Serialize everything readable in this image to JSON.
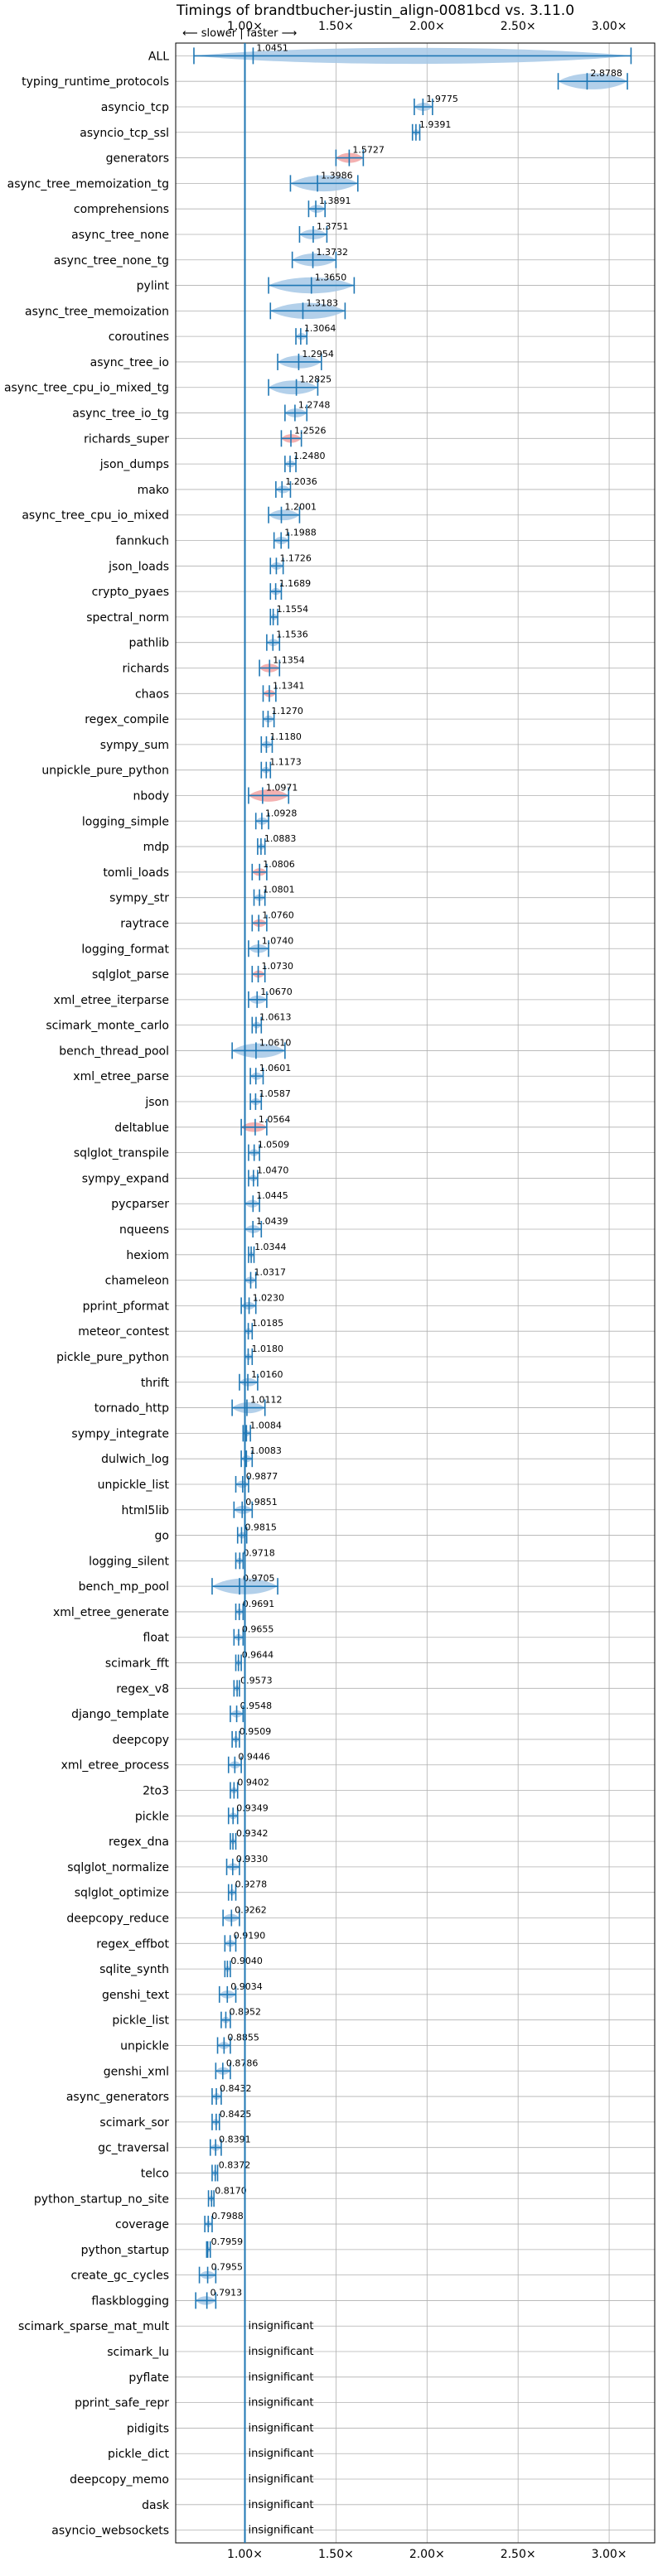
{
  "chart_data": {
    "type": "violin",
    "title": "Timings of brandtbucher-justin_align-0081bcd vs. 3.11.0",
    "x_tick_labels": [
      "1.00×",
      "1.50×",
      "2.00×",
      "2.50×",
      "3.00×"
    ],
    "x_ticks": [
      1.0,
      1.5,
      2.0,
      2.5,
      3.0
    ],
    "xlim": [
      0.62,
      3.25
    ],
    "reference_line": 1.0,
    "direction_note": "⟵ slower | faster ⟶",
    "grid": true,
    "colors": {
      "faster": "#1f77b4",
      "slower": "#d62728",
      "violin_faster": "#a6c8e6",
      "violin_slower": "#f2a3a3"
    },
    "insignificant_label": "insignificant",
    "benchmarks": [
      {
        "name": "ALL",
        "value": 1.0451,
        "min": 0.72,
        "max": 3.12
      },
      {
        "name": "typing_runtime_protocols",
        "value": 2.8788,
        "min": 2.72,
        "max": 3.1
      },
      {
        "name": "asyncio_tcp",
        "value": 1.9775,
        "min": 1.93,
        "max": 2.03
      },
      {
        "name": "asyncio_tcp_ssl",
        "value": 1.9391,
        "min": 1.92,
        "max": 1.96
      },
      {
        "name": "generators",
        "value": 1.5727,
        "min": 1.5,
        "max": 1.65
      },
      {
        "name": "async_tree_memoization_tg",
        "value": 1.3986,
        "min": 1.25,
        "max": 1.62
      },
      {
        "name": "comprehensions",
        "value": 1.3891,
        "min": 1.35,
        "max": 1.44
      },
      {
        "name": "async_tree_none",
        "value": 1.3751,
        "min": 1.3,
        "max": 1.45
      },
      {
        "name": "async_tree_none_tg",
        "value": 1.3732,
        "min": 1.26,
        "max": 1.5
      },
      {
        "name": "pylint",
        "value": 1.365,
        "min": 1.13,
        "max": 1.6
      },
      {
        "name": "async_tree_memoization",
        "value": 1.3183,
        "min": 1.14,
        "max": 1.55
      },
      {
        "name": "coroutines",
        "value": 1.3064,
        "min": 1.28,
        "max": 1.34
      },
      {
        "name": "async_tree_io",
        "value": 1.2954,
        "min": 1.18,
        "max": 1.42
      },
      {
        "name": "async_tree_cpu_io_mixed_tg",
        "value": 1.2825,
        "min": 1.13,
        "max": 1.4
      },
      {
        "name": "async_tree_io_tg",
        "value": 1.2748,
        "min": 1.22,
        "max": 1.34
      },
      {
        "name": "richards_super",
        "value": 1.2526,
        "min": 1.2,
        "max": 1.31
      },
      {
        "name": "json_dumps",
        "value": 1.248,
        "min": 1.22,
        "max": 1.28
      },
      {
        "name": "mako",
        "value": 1.2036,
        "min": 1.17,
        "max": 1.25
      },
      {
        "name": "async_tree_cpu_io_mixed",
        "value": 1.2001,
        "min": 1.13,
        "max": 1.3
      },
      {
        "name": "fannkuch",
        "value": 1.1988,
        "min": 1.16,
        "max": 1.24
      },
      {
        "name": "json_loads",
        "value": 1.1726,
        "min": 1.14,
        "max": 1.21
      },
      {
        "name": "crypto_pyaes",
        "value": 1.1689,
        "min": 1.14,
        "max": 1.2
      },
      {
        "name": "spectral_norm",
        "value": 1.1554,
        "min": 1.14,
        "max": 1.18
      },
      {
        "name": "pathlib",
        "value": 1.1536,
        "min": 1.12,
        "max": 1.19
      },
      {
        "name": "richards",
        "value": 1.1354,
        "min": 1.08,
        "max": 1.19
      },
      {
        "name": "chaos",
        "value": 1.1341,
        "min": 1.1,
        "max": 1.17
      },
      {
        "name": "regex_compile",
        "value": 1.127,
        "min": 1.1,
        "max": 1.16
      },
      {
        "name": "sympy_sum",
        "value": 1.118,
        "min": 1.09,
        "max": 1.15
      },
      {
        "name": "unpickle_pure_python",
        "value": 1.1173,
        "min": 1.09,
        "max": 1.14
      },
      {
        "name": "nbody",
        "value": 1.0971,
        "min": 1.02,
        "max": 1.24
      },
      {
        "name": "logging_simple",
        "value": 1.0928,
        "min": 1.06,
        "max": 1.13
      },
      {
        "name": "mdp",
        "value": 1.0883,
        "min": 1.07,
        "max": 1.11
      },
      {
        "name": "tomli_loads",
        "value": 1.0806,
        "min": 1.04,
        "max": 1.12
      },
      {
        "name": "sympy_str",
        "value": 1.0801,
        "min": 1.05,
        "max": 1.11
      },
      {
        "name": "raytrace",
        "value": 1.076,
        "min": 1.04,
        "max": 1.12
      },
      {
        "name": "logging_format",
        "value": 1.074,
        "min": 1.02,
        "max": 1.13
      },
      {
        "name": "sqlglot_parse",
        "value": 1.073,
        "min": 1.04,
        "max": 1.11
      },
      {
        "name": "xml_etree_iterparse",
        "value": 1.067,
        "min": 1.02,
        "max": 1.12
      },
      {
        "name": "scimark_monte_carlo",
        "value": 1.0613,
        "min": 1.04,
        "max": 1.09
      },
      {
        "name": "bench_thread_pool",
        "value": 1.061,
        "min": 0.93,
        "max": 1.22
      },
      {
        "name": "xml_etree_parse",
        "value": 1.0601,
        "min": 1.03,
        "max": 1.1
      },
      {
        "name": "json",
        "value": 1.0587,
        "min": 1.03,
        "max": 1.09
      },
      {
        "name": "deltablue",
        "value": 1.0564,
        "min": 0.98,
        "max": 1.12
      },
      {
        "name": "sqlglot_transpile",
        "value": 1.0509,
        "min": 1.02,
        "max": 1.08
      },
      {
        "name": "sympy_expand",
        "value": 1.047,
        "min": 1.02,
        "max": 1.07
      },
      {
        "name": "pycparser",
        "value": 1.0445,
        "min": 1.0,
        "max": 1.08
      },
      {
        "name": "nqueens",
        "value": 1.0439,
        "min": 1.0,
        "max": 1.09
      },
      {
        "name": "hexiom",
        "value": 1.0344,
        "min": 1.02,
        "max": 1.05
      },
      {
        "name": "chameleon",
        "value": 1.0317,
        "min": 1.0,
        "max": 1.06
      },
      {
        "name": "pprint_pformat",
        "value": 1.023,
        "min": 0.98,
        "max": 1.06
      },
      {
        "name": "meteor_contest",
        "value": 1.0185,
        "min": 1.0,
        "max": 1.04
      },
      {
        "name": "pickle_pure_python",
        "value": 1.018,
        "min": 1.0,
        "max": 1.04
      },
      {
        "name": "thrift",
        "value": 1.016,
        "min": 0.97,
        "max": 1.07
      },
      {
        "name": "tornado_http",
        "value": 1.0112,
        "min": 0.93,
        "max": 1.11
      },
      {
        "name": "sympy_integrate",
        "value": 1.0084,
        "min": 0.99,
        "max": 1.03
      },
      {
        "name": "dulwich_log",
        "value": 1.0083,
        "min": 0.98,
        "max": 1.04
      },
      {
        "name": "unpickle_list",
        "value": 0.9877,
        "min": 0.95,
        "max": 1.02
      },
      {
        "name": "html5lib",
        "value": 0.9851,
        "min": 0.94,
        "max": 1.04
      },
      {
        "name": "go",
        "value": 0.9815,
        "min": 0.96,
        "max": 1.01
      },
      {
        "name": "logging_silent",
        "value": 0.9718,
        "min": 0.95,
        "max": 0.99
      },
      {
        "name": "bench_mp_pool",
        "value": 0.9705,
        "min": 0.82,
        "max": 1.18
      },
      {
        "name": "xml_etree_generate",
        "value": 0.9691,
        "min": 0.95,
        "max": 0.99
      },
      {
        "name": "float",
        "value": 0.9655,
        "min": 0.94,
        "max": 0.99
      },
      {
        "name": "scimark_fft",
        "value": 0.9644,
        "min": 0.95,
        "max": 0.98
      },
      {
        "name": "regex_v8",
        "value": 0.9573,
        "min": 0.94,
        "max": 0.97
      },
      {
        "name": "django_template",
        "value": 0.9548,
        "min": 0.92,
        "max": 0.99
      },
      {
        "name": "deepcopy",
        "value": 0.9509,
        "min": 0.93,
        "max": 0.97
      },
      {
        "name": "xml_etree_process",
        "value": 0.9446,
        "min": 0.91,
        "max": 0.98
      },
      {
        "name": "2to3",
        "value": 0.9402,
        "min": 0.92,
        "max": 0.96
      },
      {
        "name": "pickle",
        "value": 0.9349,
        "min": 0.91,
        "max": 0.96
      },
      {
        "name": "regex_dna",
        "value": 0.9342,
        "min": 0.92,
        "max": 0.95
      },
      {
        "name": "sqlglot_normalize",
        "value": 0.933,
        "min": 0.9,
        "max": 0.97
      },
      {
        "name": "sqlglot_optimize",
        "value": 0.9278,
        "min": 0.91,
        "max": 0.95
      },
      {
        "name": "deepcopy_reduce",
        "value": 0.9262,
        "min": 0.88,
        "max": 0.97
      },
      {
        "name": "regex_effbot",
        "value": 0.919,
        "min": 0.89,
        "max": 0.95
      },
      {
        "name": "sqlite_synth",
        "value": 0.904,
        "min": 0.89,
        "max": 0.92
      },
      {
        "name": "genshi_text",
        "value": 0.9034,
        "min": 0.86,
        "max": 0.95
      },
      {
        "name": "pickle_list",
        "value": 0.8952,
        "min": 0.87,
        "max": 0.92
      },
      {
        "name": "unpickle",
        "value": 0.8855,
        "min": 0.85,
        "max": 0.92
      },
      {
        "name": "genshi_xml",
        "value": 0.8786,
        "min": 0.84,
        "max": 0.92
      },
      {
        "name": "async_generators",
        "value": 0.8432,
        "min": 0.82,
        "max": 0.87
      },
      {
        "name": "scimark_sor",
        "value": 0.8425,
        "min": 0.82,
        "max": 0.86
      },
      {
        "name": "gc_traversal",
        "value": 0.8391,
        "min": 0.81,
        "max": 0.87
      },
      {
        "name": "telco",
        "value": 0.8372,
        "min": 0.82,
        "max": 0.85
      },
      {
        "name": "python_startup_no_site",
        "value": 0.817,
        "min": 0.8,
        "max": 0.83
      },
      {
        "name": "coverage",
        "value": 0.7988,
        "min": 0.78,
        "max": 0.82
      },
      {
        "name": "python_startup",
        "value": 0.7959,
        "min": 0.79,
        "max": 0.81
      },
      {
        "name": "create_gc_cycles",
        "value": 0.7955,
        "min": 0.75,
        "max": 0.84
      },
      {
        "name": "flaskblogging",
        "value": 0.7913,
        "min": 0.73,
        "max": 0.84
      },
      {
        "name": "scimark_sparse_mat_mult",
        "insignificant": true
      },
      {
        "name": "scimark_lu",
        "insignificant": true
      },
      {
        "name": "pyflate",
        "insignificant": true
      },
      {
        "name": "pprint_safe_repr",
        "insignificant": true
      },
      {
        "name": "pidigits",
        "insignificant": true
      },
      {
        "name": "pickle_dict",
        "insignificant": true
      },
      {
        "name": "deepcopy_memo",
        "insignificant": true
      },
      {
        "name": "dask",
        "insignificant": true
      },
      {
        "name": "asyncio_websockets",
        "insignificant": true
      }
    ],
    "slower_marked": [
      "generators",
      "richards_super",
      "richards",
      "chaos",
      "nbody",
      "tomli_loads",
      "raytrace",
      "sqlglot_parse",
      "deltablue"
    ]
  }
}
